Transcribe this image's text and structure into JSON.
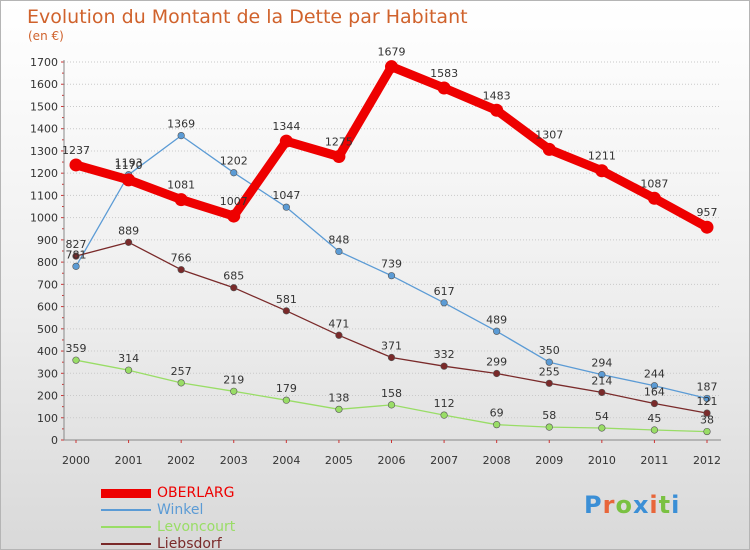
{
  "title": "Evolution du Montant de la Dette par Habitant",
  "unit_label": "(en €)",
  "brand": {
    "text": "Proxiti",
    "letter_colors": [
      "#3b8fd6",
      "#e8663a",
      "#7ac142",
      "#3b8fd6",
      "#e8663a",
      "#7ac142",
      "#3b8fd6"
    ]
  },
  "chart_data": {
    "type": "line",
    "title": "Evolution du Montant de la Dette par Habitant",
    "ylabel": "(en €)",
    "xlabel": "",
    "x": [
      "2000",
      "2001",
      "2002",
      "2003",
      "2004",
      "2005",
      "2006",
      "2007",
      "2008",
      "2009",
      "2010",
      "2011",
      "2012"
    ],
    "ylim": [
      0,
      1700
    ],
    "yticks": [
      "0",
      "100",
      "200",
      "300",
      "400",
      "500",
      "600",
      "700",
      "800",
      "900",
      "1000",
      "1100",
      "1200",
      "1300",
      "1400",
      "1500",
      "1600",
      "1700"
    ],
    "grid": "horizontal",
    "legend_position": "bottom-left",
    "series": [
      {
        "name": "OBERLARG",
        "color": "#ee0000",
        "values": [
          1237,
          1170,
          1081,
          1007,
          1344,
          1275,
          1679,
          1583,
          1483,
          1307,
          1211,
          1087,
          957
        ],
        "labels": [
          "1237",
          "1170",
          "1081",
          "1007",
          "1344",
          "1275",
          "1679",
          "1583",
          "1483",
          "1307",
          "1211",
          "1087",
          "957"
        ]
      },
      {
        "name": "Winkel",
        "color": "#5b9bd5",
        "values": [
          781,
          1193,
          1369,
          1202,
          1047,
          848,
          739,
          617,
          489,
          350,
          294,
          244,
          187
        ],
        "labels": [
          "781",
          "1193",
          "1369",
          "1202",
          "1047",
          "848",
          "739",
          "617",
          "489",
          "350",
          "294",
          "244",
          "187"
        ]
      },
      {
        "name": "Levoncourt",
        "color": "#99dd66",
        "values": [
          359,
          314,
          257,
          219,
          179,
          138,
          158,
          112,
          69,
          58,
          54,
          45,
          38
        ],
        "labels": [
          "359",
          "314",
          "257",
          "219",
          "179",
          "138",
          "158",
          "112",
          "69",
          "58",
          "54",
          "45",
          "38"
        ]
      },
      {
        "name": "Liebsdorf",
        "color": "#7a2a2a",
        "values": [
          827,
          889,
          766,
          685,
          581,
          471,
          371,
          332,
          299,
          255,
          214,
          164,
          121
        ],
        "labels": [
          "827",
          "889",
          "766",
          "685",
          "581",
          "471",
          "371",
          "332",
          "299",
          "255",
          "214",
          "164",
          "121"
        ]
      }
    ]
  }
}
